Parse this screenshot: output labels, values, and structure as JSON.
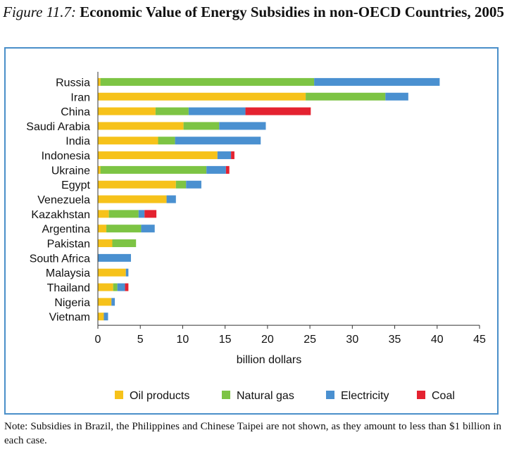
{
  "figure": {
    "prefix": "Figure 11.7:",
    "title": "Economic Value of Energy Subsidies in non-OECD Countries, 2005"
  },
  "note": "Note: Subsidies in Brazil, the Philippines and Chinese Taipei are not shown, as they amount to less than $1 billion in each case.",
  "chart_data": {
    "type": "bar",
    "orientation": "horizontal",
    "stacked": true,
    "categories": [
      "Russia",
      "Iran",
      "China",
      "Saudi Arabia",
      "India",
      "Indonesia",
      "Ukraine",
      "Egypt",
      "Venezuela",
      "Kazakhstan",
      "Argentina",
      "Pakistan",
      "South Africa",
      "Malaysia",
      "Thailand",
      "Nigeria",
      "Vietnam"
    ],
    "series": [
      {
        "name": "Oil products",
        "color": "#f6c21a",
        "values": [
          0.3,
          24.5,
          6.8,
          10.1,
          7.1,
          14.1,
          0.3,
          9.2,
          8.1,
          1.3,
          1.0,
          1.7,
          0.0,
          3.3,
          1.8,
          1.6,
          0.7
        ]
      },
      {
        "name": "Natural gas",
        "color": "#7dc444",
        "values": [
          25.2,
          9.4,
          3.9,
          4.2,
          2.0,
          0.0,
          12.5,
          1.2,
          0.0,
          3.5,
          4.1,
          2.8,
          0.0,
          0.0,
          0.5,
          0.0,
          0.0
        ]
      },
      {
        "name": "Electricity",
        "color": "#4a90d0",
        "values": [
          14.8,
          2.7,
          6.7,
          5.5,
          10.1,
          1.6,
          2.3,
          1.8,
          1.1,
          0.7,
          1.6,
          0.0,
          3.9,
          0.3,
          0.9,
          0.4,
          0.5
        ]
      },
      {
        "name": "Coal",
        "color": "#e42230",
        "values": [
          0.0,
          0.0,
          7.7,
          0.0,
          0.0,
          0.4,
          0.4,
          0.0,
          0.0,
          1.4,
          0.0,
          0.0,
          0.0,
          0.0,
          0.4,
          0.0,
          0.0
        ]
      }
    ],
    "xlim": [
      0,
      45
    ],
    "xticks": [
      "0",
      "5",
      "10",
      "15",
      "20",
      "25",
      "30",
      "35",
      "40",
      "45"
    ],
    "xlabel": "billion dollars",
    "ylabel": "",
    "grid": false,
    "legend_position": "bottom"
  }
}
